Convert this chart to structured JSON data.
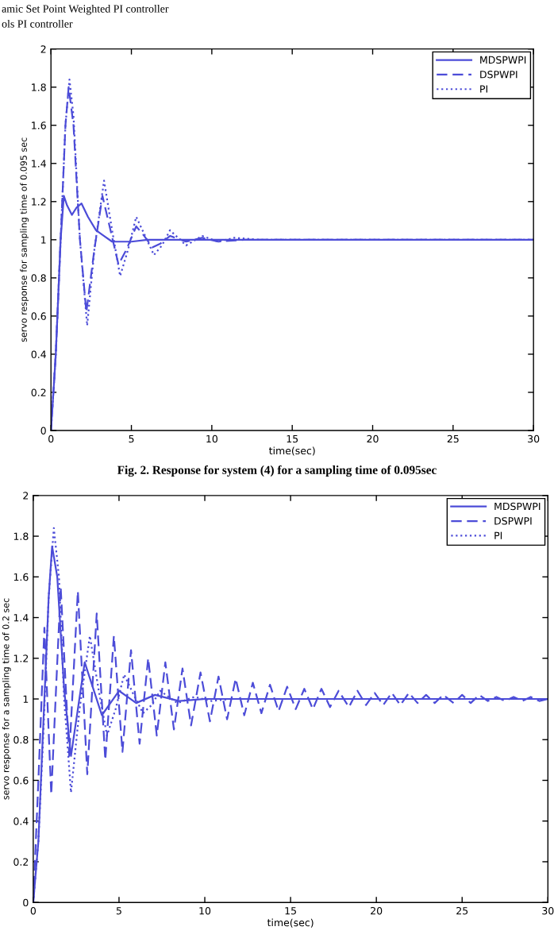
{
  "chart_data": [
    {
      "type": "line",
      "xlabel": "time(sec)",
      "ylabel": "servo response for sampling time of 0.095 sec",
      "annotations": [
        "amic Set Point Weighted PI controller",
        "ols PI controller",
        "Fig. 2. Response for system (4) for a sampling time of 0.095sec"
      ],
      "xlim": [
        0,
        30
      ],
      "ylim": [
        0,
        2
      ],
      "xticks": [
        0,
        5,
        10,
        15,
        20,
        25,
        30
      ],
      "yticks": [
        0,
        0.2,
        0.4,
        0.6,
        0.8,
        1,
        1.2,
        1.4,
        1.6,
        1.8,
        2
      ],
      "grid": false,
      "legend": "top right",
      "marker": "none",
      "series": [
        {
          "name": "MDSPWPI",
          "color": "#4c4cd8",
          "line_style": "solid",
          "x": [
            0,
            0.3,
            0.6,
            0.8,
            1.0,
            1.3,
            1.6,
            1.9,
            2.3,
            2.8,
            3.3,
            3.8,
            4.5,
            5,
            6,
            8,
            10,
            15,
            20,
            30
          ],
          "values": [
            0,
            0.4,
            1.0,
            1.23,
            1.18,
            1.13,
            1.17,
            1.19,
            1.12,
            1.05,
            1.02,
            0.99,
            0.99,
            0.99,
            1.0,
            1.0,
            1.0,
            1.0,
            1.0,
            1.0
          ]
        },
        {
          "name": "DSPWPI",
          "color": "#4c4cd8",
          "line_style": "dashed",
          "x": [
            0,
            0.3,
            0.6,
            0.9,
            1.1,
            1.4,
            1.8,
            2.2,
            2.7,
            3.2,
            3.7,
            4.2,
            4.7,
            5.3,
            5.8,
            6.3,
            6.8,
            7.4,
            8.4,
            9.4,
            10.4,
            12,
            15,
            30
          ],
          "values": [
            0,
            0.4,
            1.0,
            1.6,
            1.8,
            1.6,
            1.0,
            0.62,
            0.95,
            1.23,
            1.05,
            0.87,
            0.95,
            1.07,
            1.02,
            0.96,
            0.98,
            1.02,
            0.99,
            1.01,
            0.99,
            1.0,
            1.0,
            1.0
          ]
        },
        {
          "name": "PI",
          "color": "#4c4cd8",
          "line_style": "dotted",
          "x": [
            0,
            0.3,
            0.6,
            0.9,
            1.15,
            1.4,
            1.8,
            2.25,
            2.7,
            3.3,
            3.8,
            4.3,
            4.8,
            5.3,
            5.8,
            6.4,
            6.9,
            7.4,
            8.4,
            9.4,
            10.4,
            11.4,
            13,
            15,
            30
          ],
          "values": [
            0,
            0.4,
            1.0,
            1.6,
            1.84,
            1.65,
            1.0,
            0.55,
            0.95,
            1.31,
            1.05,
            0.81,
            0.95,
            1.12,
            1.03,
            0.92,
            0.97,
            1.05,
            0.97,
            1.02,
            0.99,
            1.01,
            1.0,
            1.0,
            1.0
          ]
        }
      ]
    },
    {
      "type": "line",
      "xlabel": "time(sec)",
      "ylabel": "servo response for a sampling time of 0.2 sec",
      "xlim": [
        0,
        30
      ],
      "ylim": [
        0,
        2
      ],
      "xticks": [
        0,
        5,
        10,
        15,
        20,
        25,
        30
      ],
      "yticks": [
        0,
        0.2,
        0.4,
        0.6,
        0.8,
        1,
        1.2,
        1.4,
        1.6,
        1.8,
        2
      ],
      "grid": false,
      "legend": "top right",
      "marker": "none",
      "series": [
        {
          "name": "MDSPWPI",
          "color": "#4c4cd8",
          "line_style": "solid",
          "x": [
            0,
            0.3,
            0.6,
            0.9,
            1.1,
            1.4,
            1.8,
            2.2,
            2.6,
            3.0,
            3.5,
            4.0,
            4.5,
            5.0,
            5.5,
            6.0,
            7.1,
            8.5,
            10,
            15,
            20,
            30
          ],
          "values": [
            0,
            0.3,
            0.9,
            1.5,
            1.75,
            1.6,
            1.05,
            0.72,
            0.95,
            1.18,
            1.05,
            0.92,
            0.98,
            1.04,
            1.01,
            0.98,
            1.02,
            0.99,
            1.0,
            1.0,
            1.0,
            1.0
          ]
        },
        {
          "name": "DSPWPI",
          "color": "#4c4cd8",
          "line_style": "dashed",
          "x": [
            0,
            0.3,
            0.65,
            1.05,
            1.6,
            2.1,
            2.6,
            3.15,
            3.7,
            4.2,
            4.7,
            5.2,
            5.7,
            6.2,
            6.7,
            7.2,
            7.7,
            8.2,
            8.7,
            9.2,
            9.75,
            10.3,
            10.8,
            11.3,
            11.8,
            12.3,
            12.8,
            13.3,
            13.8,
            14.3,
            14.8,
            15.3,
            15.8,
            16.3,
            16.8,
            17.3,
            17.8,
            18.4,
            18.9,
            19.4,
            19.9,
            20.4,
            20.9,
            21.4,
            21.9,
            22.4,
            22.9,
            23.4,
            23.9,
            24.5,
            25.0,
            25.5,
            26.0,
            26.5,
            27.0,
            27.5,
            28.0,
            28.5,
            29.0,
            29.5,
            30
          ],
          "values": [
            0,
            0.6,
            1.35,
            0.53,
            1.55,
            0.72,
            1.53,
            0.63,
            1.42,
            0.7,
            1.31,
            0.74,
            1.24,
            0.78,
            1.2,
            0.82,
            1.18,
            0.85,
            1.15,
            0.87,
            1.13,
            0.89,
            1.11,
            0.9,
            1.1,
            0.92,
            1.08,
            0.93,
            1.07,
            0.94,
            1.06,
            0.95,
            1.05,
            0.95,
            1.05,
            0.96,
            1.04,
            0.96,
            1.04,
            0.97,
            1.03,
            0.97,
            1.03,
            0.97,
            1.03,
            0.98,
            1.02,
            0.98,
            1.02,
            0.98,
            1.02,
            0.98,
            1.02,
            0.99,
            1.01,
            0.99,
            1.01,
            0.99,
            1.01,
            0.99,
            1.0
          ]
        },
        {
          "name": "PI",
          "color": "#4c4cd8",
          "line_style": "dotted",
          "x": [
            0,
            0.3,
            0.6,
            0.9,
            1.2,
            1.5,
            1.8,
            2.2,
            2.7,
            3.3,
            3.8,
            4.3,
            4.8,
            5.3,
            5.8,
            6.4,
            6.9,
            7.4,
            8.4,
            9.4,
            10.4,
            11.5,
            15,
            30
          ],
          "values": [
            0,
            0.3,
            0.85,
            1.5,
            1.84,
            1.6,
            1.0,
            0.54,
            0.95,
            1.31,
            1.05,
            0.82,
            0.95,
            1.12,
            1.03,
            0.93,
            0.97,
            1.04,
            0.98,
            1.01,
            0.99,
            1.0,
            1.0,
            1.0
          ]
        }
      ]
    }
  ]
}
